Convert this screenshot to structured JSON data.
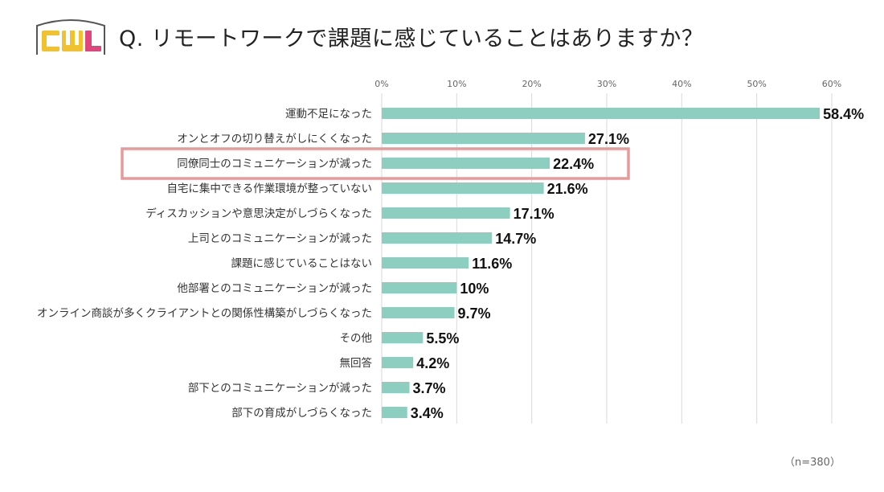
{
  "logo": {
    "text": "CWL",
    "letters": [
      "C",
      "W",
      "L"
    ],
    "colors": {
      "c": "#f2c12e",
      "w": "#f2c12e",
      "l": "#e0457b",
      "outline": "#555555"
    }
  },
  "question": "Q. リモートワークで課題に感じていることはありますか？",
  "note": "（n=380）",
  "chart_data": {
    "type": "bar",
    "orientation": "horizontal",
    "categories": [
      "運動不足になった",
      "オンとオフの切り替えがしにくくなった",
      "同僚同士のコミュニケーションが減った",
      "自宅に集中できる作業環境が整っていない",
      "ディスカッションや意思決定がしづらくなった",
      "上司とのコミュニケーションが減った",
      "課題に感じていることはない",
      "他部署とのコミュニケーションが減った",
      "オンライン商談が多くクライアントとの関係性構築がしづらくなった",
      "その他",
      "無回答",
      "部下とのコミュニケーションが減った",
      "部下の育成がしづらくなった"
    ],
    "values": [
      58.4,
      27.1,
      22.4,
      21.6,
      17.1,
      14.7,
      11.6,
      10,
      9.7,
      5.5,
      4.2,
      3.7,
      3.4
    ],
    "value_labels": [
      "58.4%",
      "27.1%",
      "22.4%",
      "21.6%",
      "17.1%",
      "14.7%",
      "11.6%",
      "10%",
      "9.7%",
      "5.5%",
      "4.2%",
      "3.7%",
      "3.4%"
    ],
    "xticks": [
      "0%",
      "10%",
      "20%",
      "30%",
      "40%",
      "50%",
      "60%"
    ],
    "xlim": [
      0,
      60
    ],
    "axis_position": "top",
    "grid": true,
    "highlighted_index": 2,
    "colors": {
      "bar": "#8ccfc0",
      "highlight": "#e89a9a",
      "grid": "#d9d9d9"
    }
  }
}
